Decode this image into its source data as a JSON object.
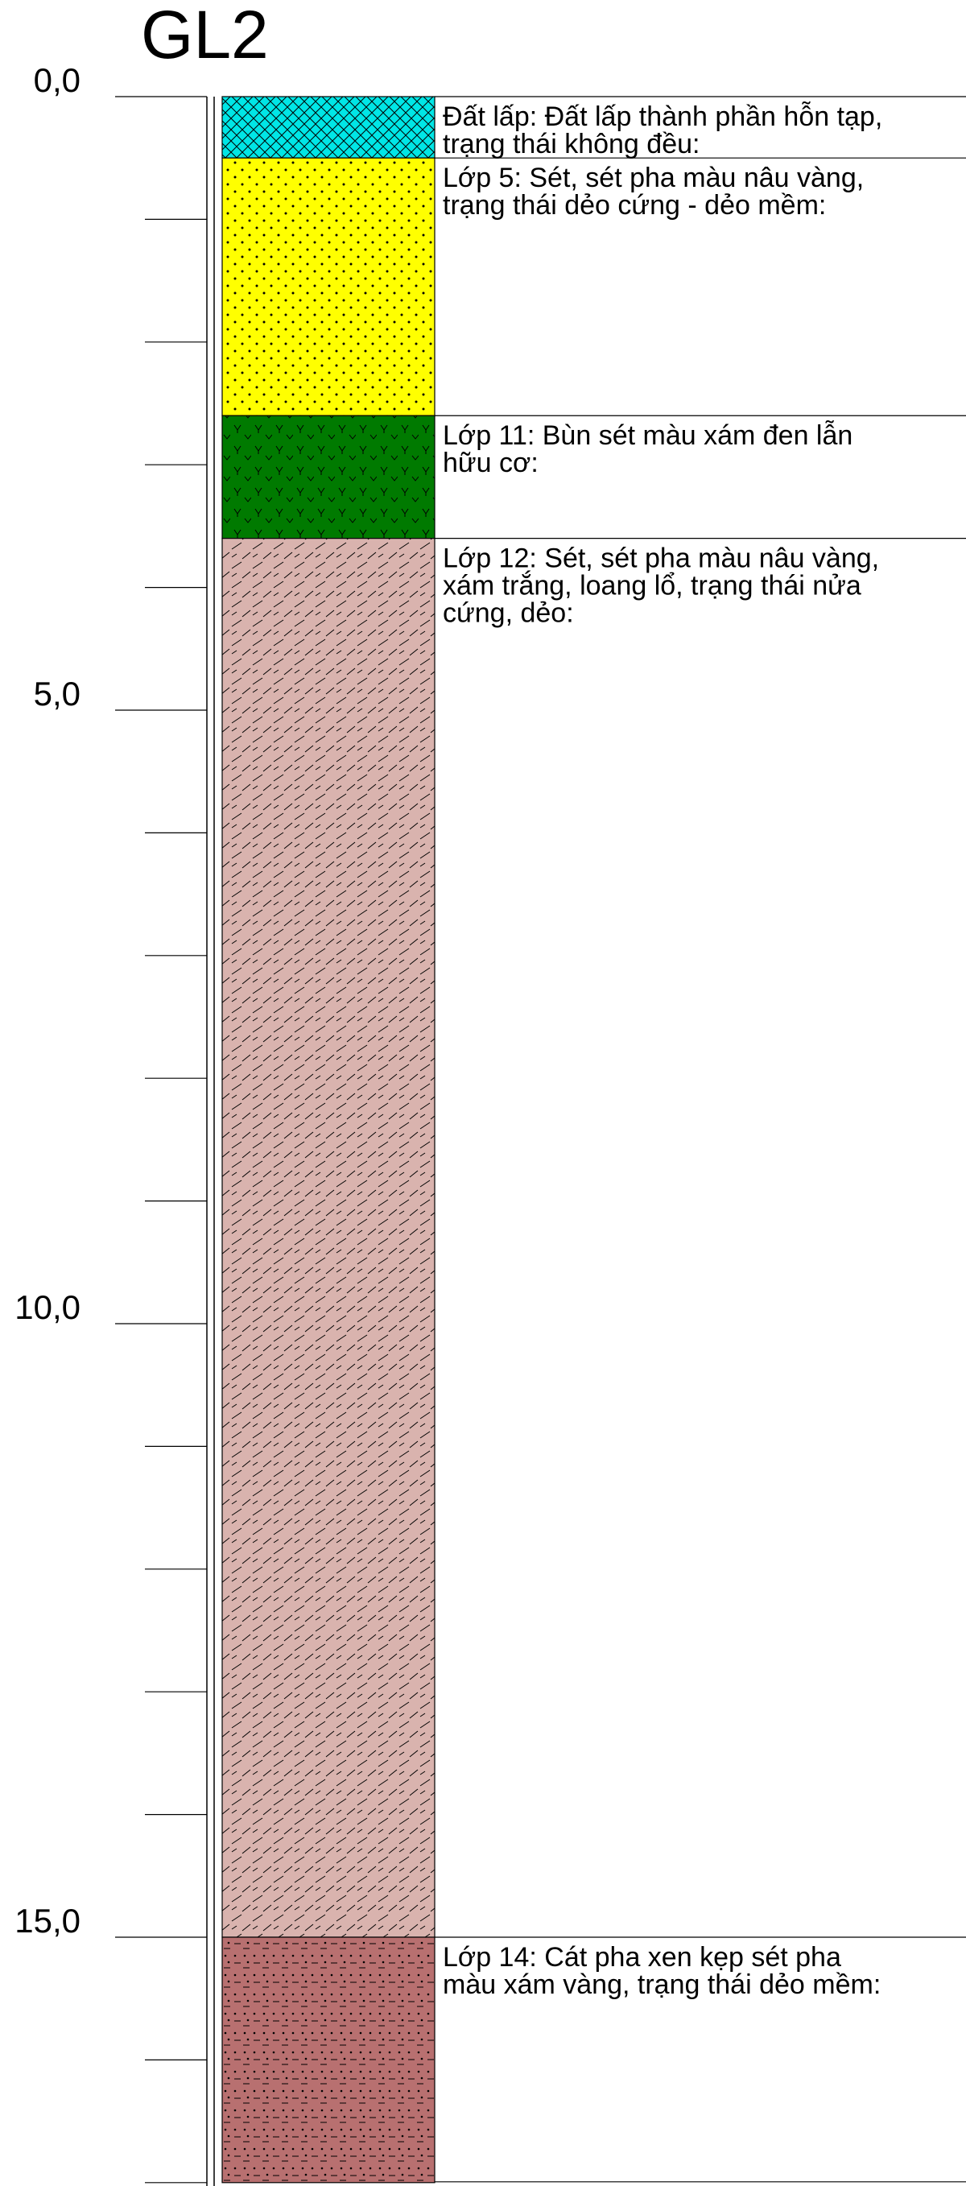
{
  "borehole": {
    "title": "GL2"
  },
  "depth_axis": {
    "unit": "m",
    "range": [
      0.0,
      17.0
    ],
    "major_step": 5.0,
    "minor_step": 1.0,
    "labels": [
      "0,0",
      "5,0",
      "10,0",
      "15,0"
    ]
  },
  "layers": [
    {
      "top": 0.0,
      "bottom": 0.5,
      "color": "#00e6e6",
      "pattern": "crosshatch",
      "description_lines": [
        "Đất lấp: Đất lấp thành phần hỗn tạp,",
        "trạng thái không đều:"
      ]
    },
    {
      "top": 0.5,
      "bottom": 2.6,
      "color": "#ffff00",
      "pattern": "dots",
      "description_lines": [
        "Lớp 5: Sét, sét pha màu nâu vàng,",
        "trạng thái dẻo cứng - dẻo mềm:"
      ]
    },
    {
      "top": 2.6,
      "bottom": 3.6,
      "color": "#007a00",
      "pattern": "organic",
      "description_lines": [
        "Lớp 11: Bùn sét màu xám đen lẫn",
        "hữu cơ:"
      ]
    },
    {
      "top": 3.6,
      "bottom": 15.0,
      "color": "#d9b3ae",
      "pattern": "diagonal-dash",
      "description_lines": [
        "Lớp 12: Sét, sét pha màu nâu vàng,",
        "xám trắng, loang lổ, trạng thái nửa",
        "cứng, dẻo:"
      ]
    },
    {
      "top": 15.0,
      "bottom": 17.0,
      "color": "#b87070",
      "pattern": "dot-dash",
      "description_lines": [
        "Lớp 14: Cát pha xen kẹp sét pha",
        "màu xám vàng, trạng thái dẻo mềm:"
      ]
    }
  ]
}
